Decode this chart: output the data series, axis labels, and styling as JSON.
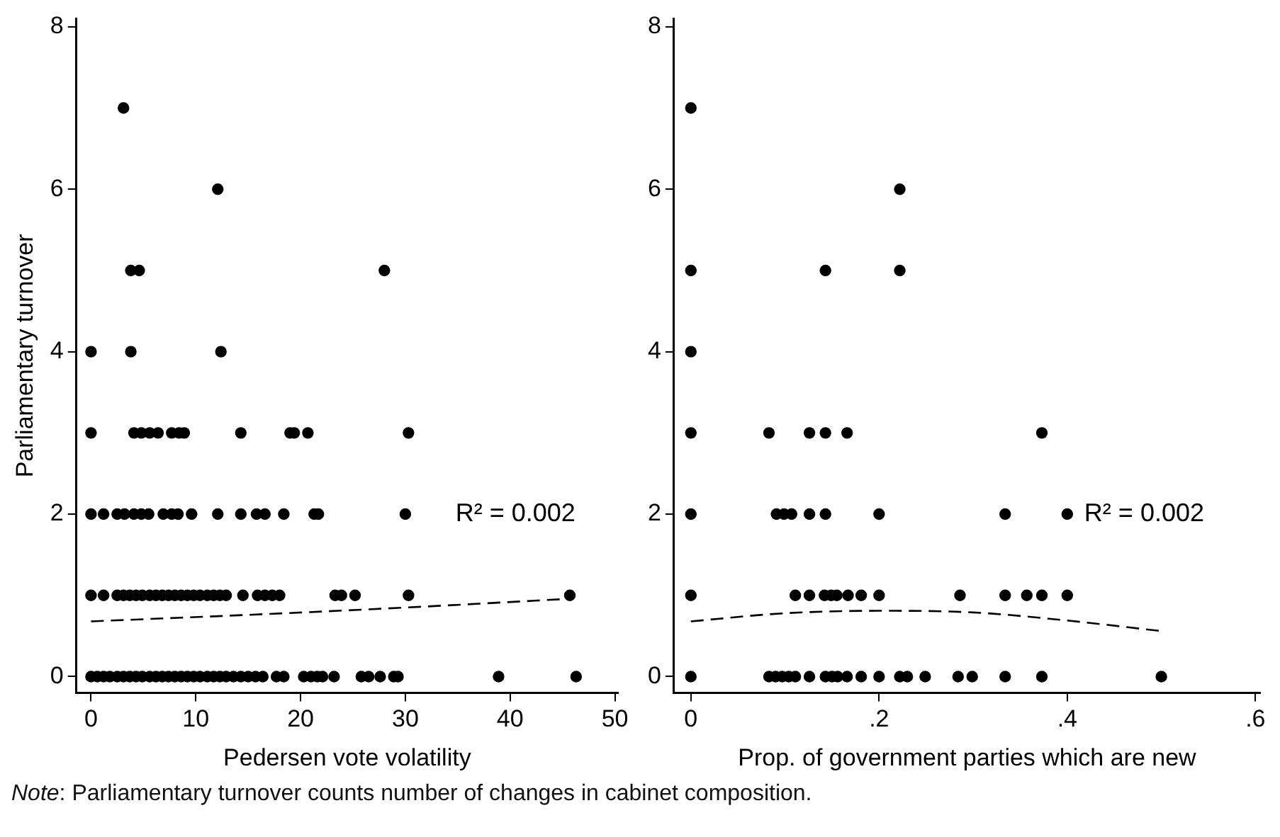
{
  "chart_data": [
    {
      "type": "scatter",
      "xlabel": "Pedersen vote volatility",
      "ylabel": "Parliamentary turnover",
      "xlim": [
        -1.4,
        50.3
      ],
      "ylim": [
        -0.2,
        8.1
      ],
      "xticks": [
        0,
        10,
        20,
        30,
        40,
        50
      ],
      "yticks": [
        0,
        2,
        4,
        6,
        8
      ],
      "legend": false,
      "marker": "circle",
      "series": [
        {
          "color": "#000000",
          "x": [
            3.1,
            12.1,
            3.8,
            4.6,
            28.0,
            0,
            3.8,
            12.4,
            0,
            4.1,
            4.8,
            5.6,
            6.4,
            7.7,
            8.4,
            8.9,
            14.3,
            19.0,
            19.4,
            20.7,
            30.3,
            0,
            1.2,
            2.5,
            3.2,
            4.1,
            4.8,
            5.5,
            6.9,
            7.7,
            8.3,
            9.6,
            12.1,
            14.3,
            15.8,
            16.6,
            18.4,
            21.3,
            21.7,
            30.0,
            0,
            1.2,
            2.5,
            3.1,
            3.7,
            4.3,
            4.9,
            5.6,
            6.2,
            6.8,
            7.4,
            8.0,
            8.6,
            9.2,
            9.8,
            10.4,
            11.1,
            11.7,
            12.3,
            12.9,
            14.5,
            15.9,
            16.6,
            17.3,
            18.0,
            23.3,
            23.9,
            25.2,
            30.3,
            45.7,
            0,
            0.6,
            1.2,
            1.8,
            2.5,
            3.1,
            3.7,
            4.3,
            4.9,
            5.6,
            6.2,
            6.8,
            7.4,
            8.0,
            8.6,
            9.2,
            9.8,
            10.4,
            11.1,
            11.7,
            12.3,
            12.9,
            13.6,
            14.3,
            15.0,
            15.7,
            16.4,
            17.7,
            18.4,
            20.3,
            21.0,
            21.6,
            22.1,
            23.2,
            25.8,
            26.5,
            27.6,
            28.9,
            29.3,
            38.9,
            46.3
          ],
          "values": [
            7,
            6,
            5,
            5,
            5,
            4,
            4,
            4,
            3,
            3,
            3,
            3,
            3,
            3,
            3,
            3,
            3,
            3,
            3,
            3,
            3,
            2,
            2,
            2,
            2,
            2,
            2,
            2,
            2,
            2,
            2,
            2,
            2,
            2,
            2,
            2,
            2,
            2,
            2,
            2,
            1,
            1,
            1,
            1,
            1,
            1,
            1,
            1,
            1,
            1,
            1,
            1,
            1,
            1,
            1,
            1,
            1,
            1,
            1,
            1,
            1,
            1,
            1,
            1,
            1,
            1,
            1,
            1,
            1,
            1,
            0,
            0,
            0,
            0,
            0,
            0,
            0,
            0,
            0,
            0,
            0,
            0,
            0,
            0,
            0,
            0,
            0,
            0,
            0,
            0,
            0,
            0,
            0,
            0,
            0,
            0,
            0,
            0,
            0,
            0,
            0,
            0,
            0,
            0,
            0,
            0,
            0,
            0,
            0,
            0,
            0
          ]
        },
        {
          "type": "line",
          "color": "#000000",
          "line_style": "dashed",
          "marker": "none",
          "x": [
            0,
            15,
            30,
            46
          ],
          "values": [
            0.68,
            0.76,
            0.85,
            0.96
          ]
        }
      ],
      "annotations": [
        "R² = 0.002",
        "Note: Parliamentary turnover counts number of changes in cabinet composition."
      ]
    },
    {
      "type": "scatter",
      "xlabel": "Prop. of government parties which are new",
      "xlim": [
        -0.018,
        0.605
      ],
      "ylim": [
        -0.2,
        8.1
      ],
      "xticks": [
        {
          "value": 0,
          "label": "0"
        },
        {
          "value": 0.2,
          "label": ".2"
        },
        {
          "value": 0.4,
          "label": ".4"
        },
        {
          "value": 0.6,
          "label": ".6"
        }
      ],
      "yticks": [
        0,
        2,
        4,
        6,
        8
      ],
      "legend": false,
      "marker": "circle",
      "series": [
        {
          "color": "#000000",
          "x": [
            0,
            0.222,
            0,
            0.143,
            0.222,
            0,
            0,
            0.083,
            0.126,
            0.143,
            0.166,
            0.373,
            0,
            0.091,
            0.099,
            0.107,
            0.126,
            0.143,
            0.2,
            0.334,
            0.4,
            0,
            0.111,
            0.126,
            0.142,
            0.149,
            0.155,
            0.167,
            0.181,
            0.2,
            0.286,
            0.334,
            0.357,
            0.373,
            0.4,
            0,
            0.083,
            0.09,
            0.097,
            0.104,
            0.111,
            0.126,
            0.143,
            0.15,
            0.156,
            0.166,
            0.181,
            0.2,
            0.222,
            0.23,
            0.249,
            0.284,
            0.299,
            0.334,
            0.373,
            0.5
          ],
          "values": [
            7,
            6,
            5,
            5,
            5,
            4,
            3,
            3,
            3,
            3,
            3,
            3,
            2,
            2,
            2,
            2,
            2,
            2,
            2,
            2,
            2,
            1,
            1,
            1,
            1,
            1,
            1,
            1,
            1,
            1,
            1,
            1,
            1,
            1,
            1,
            0,
            0,
            0,
            0,
            0,
            0,
            0,
            0,
            0,
            0,
            0,
            0,
            0,
            0,
            0,
            0,
            0,
            0,
            0,
            0,
            0
          ]
        },
        {
          "type": "line",
          "color": "#000000",
          "line_style": "dashed",
          "marker": "none",
          "x": [
            0,
            0.1,
            0.2,
            0.3,
            0.4,
            0.5
          ],
          "values": [
            0.68,
            0.78,
            0.81,
            0.79,
            0.69,
            0.56
          ]
        }
      ],
      "annotations": [
        "R² = 0.002"
      ]
    }
  ]
}
